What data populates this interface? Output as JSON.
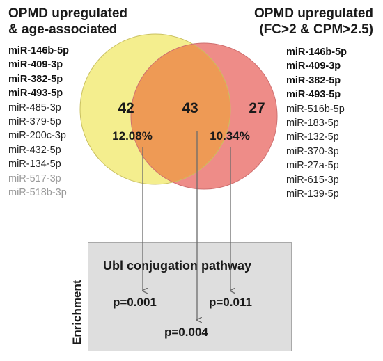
{
  "left_set": {
    "title_line1": "OPMD upregulated",
    "title_line2": "& age-associated",
    "mirnas": [
      {
        "name": "miR-146b-5p",
        "style": "bold"
      },
      {
        "name": "miR-409-3p",
        "style": "bold"
      },
      {
        "name": "miR-382-5p",
        "style": "bold"
      },
      {
        "name": "miR-493-5p",
        "style": "bold"
      },
      {
        "name": "miR-485-3p",
        "style": "normal"
      },
      {
        "name": "miR-379-5p",
        "style": "normal"
      },
      {
        "name": "miR-200c-3p",
        "style": "normal"
      },
      {
        "name": "miR-432-5p",
        "style": "normal"
      },
      {
        "name": "miR-134-5p",
        "style": "normal"
      },
      {
        "name": "miR-517-3p",
        "style": "grey"
      },
      {
        "name": "miR-518b-3p",
        "style": "grey"
      }
    ],
    "color": "#f4ee8e"
  },
  "right_set": {
    "title_line1": "OPMD upregulated",
    "title_line2": "(FC>2 & CPM>2.5)",
    "mirnas": [
      {
        "name": "miR-146b-5p",
        "style": "bold"
      },
      {
        "name": "miR-409-3p",
        "style": "bold"
      },
      {
        "name": "miR-382-5p",
        "style": "bold"
      },
      {
        "name": "miR-493-5p",
        "style": "bold"
      },
      {
        "name": "miR-516b-5p",
        "style": "normal"
      },
      {
        "name": "miR-183-5p",
        "style": "normal"
      },
      {
        "name": "miR-132-5p",
        "style": "normal"
      },
      {
        "name": "miR-370-3p",
        "style": "normal"
      },
      {
        "name": "miR-27a-5p",
        "style": "normal"
      },
      {
        "name": "miR-615-3p",
        "style": "normal"
      },
      {
        "name": "miR-139-5p",
        "style": "normal"
      }
    ],
    "color": "#ee8c88"
  },
  "venn": {
    "left_only_count": "42",
    "left_only_percent": "12.08%",
    "overlap_count": "43",
    "right_only_count": "27",
    "right_only_percent": "10.34%",
    "overlap_color": "#ee9a55"
  },
  "enrichment": {
    "label": "Enrichment",
    "pathway": "Ubl conjugation pathway",
    "p_left": "p=0.001",
    "p_right": "p=0.011",
    "p_overlap": "p=0.004"
  }
}
